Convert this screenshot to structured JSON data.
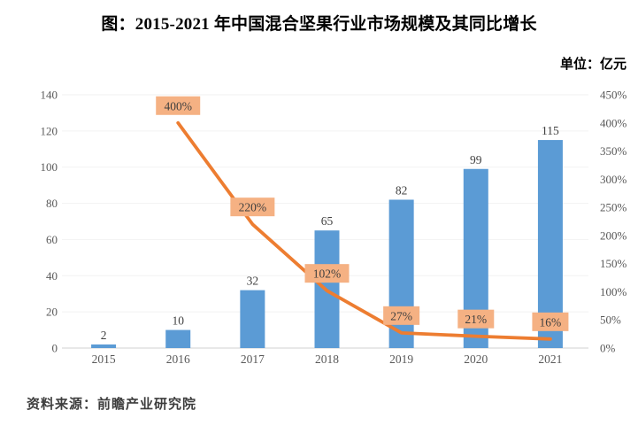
{
  "page": {
    "source_label": "资料来源：前瞻产业研究院"
  },
  "chart_data": {
    "type": "bar+line",
    "title": "图：2015-2021 年中国混合坚果行业市场规模及其同比增长",
    "unit_label": "单位：亿元",
    "categories": [
      "2015",
      "2016",
      "2017",
      "2018",
      "2019",
      "2020",
      "2021"
    ],
    "series": [
      {
        "name": "市场规模（亿元）",
        "type": "bar",
        "axis": "left",
        "color": "#5B9BD5",
        "values": [
          2,
          10,
          32,
          65,
          82,
          99,
          115
        ],
        "value_labels": [
          "2",
          "10",
          "32",
          "65",
          "82",
          "99",
          "115"
        ]
      },
      {
        "name": "同比增长",
        "type": "line",
        "axis": "right",
        "color": "#ED7D31",
        "label_bg": "#F5B183",
        "label_text_color": "#3F3F3F",
        "values": [
          null,
          400,
          220,
          102,
          27,
          21,
          16
        ],
        "labels": [
          null,
          "400%",
          "220%",
          "102%",
          "27%",
          "21%",
          "16%"
        ]
      }
    ],
    "left_axis": {
      "min": 0,
      "max": 140,
      "step": 20,
      "tick_labels": [
        "0",
        "20",
        "40",
        "60",
        "80",
        "100",
        "120",
        "140"
      ]
    },
    "right_axis": {
      "min": 0,
      "max": 450,
      "step": 50,
      "tick_labels": [
        "0%",
        "50%",
        "100%",
        "150%",
        "200%",
        "250%",
        "300%",
        "350%",
        "400%",
        "450%"
      ]
    },
    "legend": "none",
    "gridlines": "faint horizontal",
    "axis_text_color": "#595959",
    "bar_label_color": "#404040"
  }
}
